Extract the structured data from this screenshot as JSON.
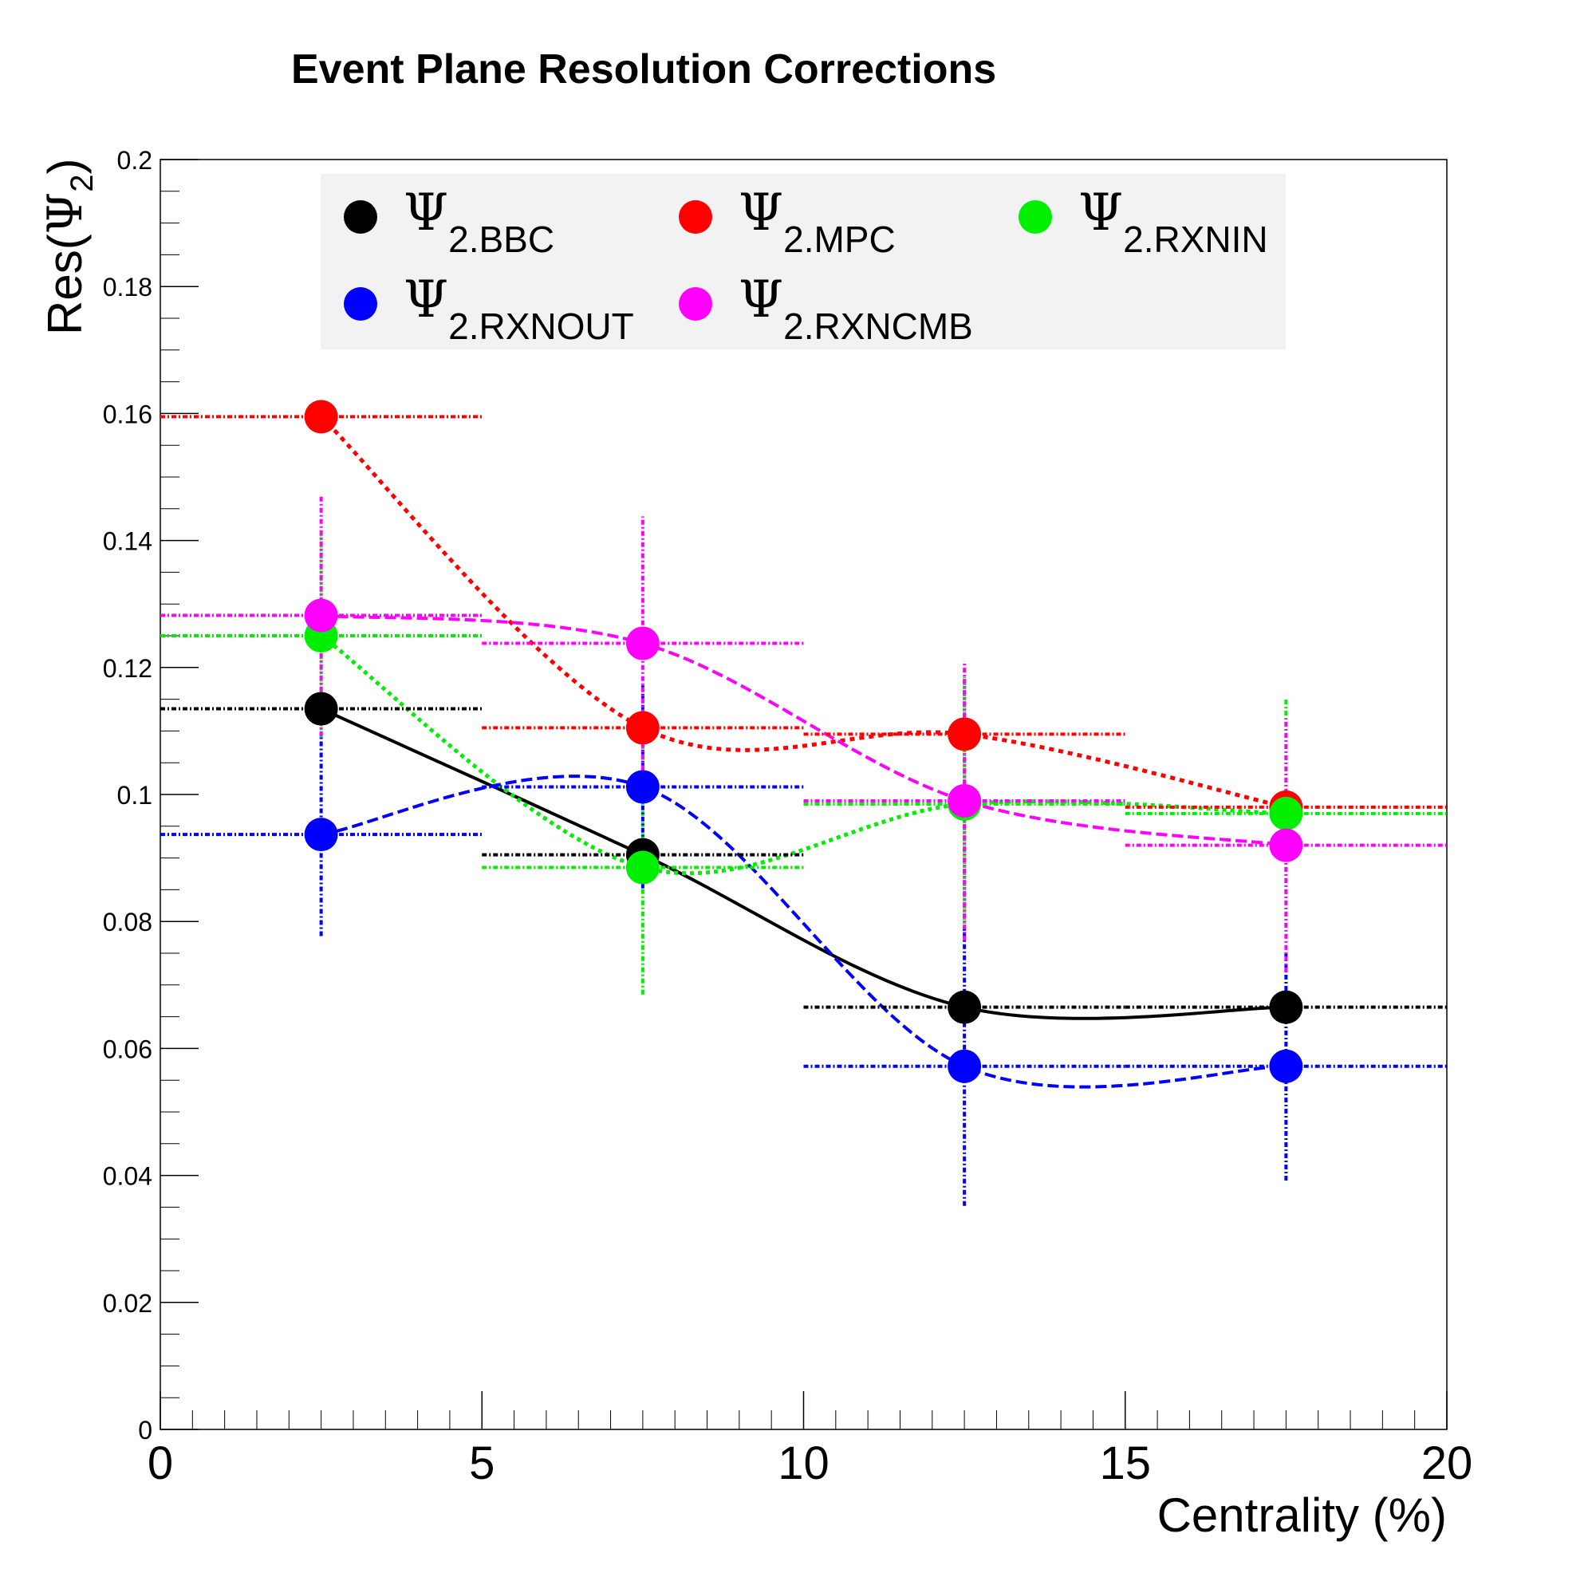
{
  "chart_data": {
    "type": "scatter",
    "title": "Event Plane Resolution Corrections",
    "xlabel": "Centrality (%)",
    "ylabel_main": "Res(",
    "ylabel_symbol": "Ψ",
    "ylabel_sub": "2",
    "ylabel_close": ")",
    "xlim": [
      0,
      20
    ],
    "ylim": [
      0,
      0.2
    ],
    "x_ticks": [
      "0",
      "5",
      "10",
      "15",
      "20"
    ],
    "y_ticks": [
      "0",
      "0.02",
      "0.04",
      "0.06",
      "0.08",
      "0.1",
      "0.12",
      "0.14",
      "0.16",
      "0.18",
      "0.2"
    ],
    "legend_position": "top",
    "x": [
      2.5,
      7.5,
      12.5,
      17.5
    ],
    "x_err": 2.5,
    "series": [
      {
        "name": "Ψ",
        "sub": "2.BBC",
        "color": "#000000",
        "values": [
          0.1135,
          0.0905,
          0.0665,
          0.0665
        ],
        "y_err": [
          0,
          0,
          0,
          0
        ]
      },
      {
        "name": "Ψ",
        "sub": "2.MPC",
        "color": "#ff0000",
        "values": [
          0.1595,
          0.1105,
          0.1095,
          0.098
        ],
        "y_err": [
          0,
          0,
          0,
          0
        ]
      },
      {
        "name": "Ψ",
        "sub": "2.RXNIN",
        "color": "#00ee00",
        "values": [
          0.125,
          0.0885,
          0.0985,
          0.097
        ],
        "y_err": [
          0.016,
          0.02,
          0.02,
          0.018
        ]
      },
      {
        "name": "Ψ",
        "sub": "2.RXNOUT",
        "color": "#0000ff",
        "values": [
          0.0937,
          0.1012,
          0.0572,
          0.0572
        ],
        "y_err": [
          0.016,
          0.016,
          0.022,
          0.018
        ]
      },
      {
        "name": "Ψ",
        "sub": "2.RXNCMB",
        "color": "#ff00ff",
        "values": [
          0.1282,
          0.1238,
          0.099,
          0.092
        ],
        "y_err": [
          0.019,
          0.02,
          0.022,
          0.02
        ]
      }
    ]
  }
}
